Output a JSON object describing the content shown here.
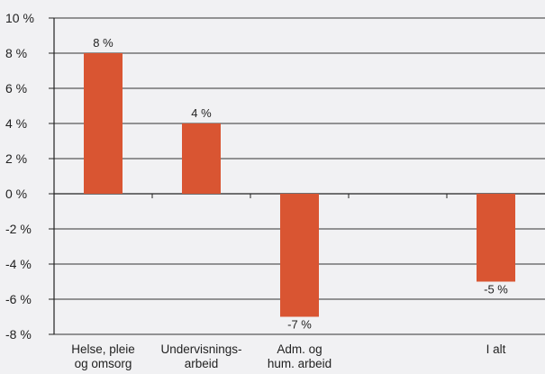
{
  "chart_data": {
    "type": "bar",
    "title": "",
    "xlabel": "",
    "ylabel": "",
    "ylim": [
      -8,
      10
    ],
    "yticks": [
      {
        "value": 10,
        "label": "10 %"
      },
      {
        "value": 8,
        "label": "8 %"
      },
      {
        "value": 6,
        "label": "6 %"
      },
      {
        "value": 4,
        "label": "4 %"
      },
      {
        "value": 2,
        "label": "2 %"
      },
      {
        "value": 0,
        "label": "0 %"
      },
      {
        "value": -2,
        "label": "-2 %"
      },
      {
        "value": -4,
        "label": "-4 %"
      },
      {
        "value": -6,
        "label": "-6 %"
      },
      {
        "value": -8,
        "label": "-8 %"
      }
    ],
    "grid": true,
    "legend": "none",
    "categories": [
      [
        "Helse, pleie",
        "og omsorg"
      ],
      [
        "Undervisnings-",
        "arbeid"
      ],
      [
        "Adm. og",
        "hum. arbeid"
      ],
      [
        ""
      ],
      [
        "I alt"
      ]
    ],
    "values": [
      8,
      4,
      -7,
      null,
      -5
    ],
    "data_labels": [
      "8 %",
      "4 %",
      "-7 %",
      "",
      "-5 %"
    ],
    "colors": {
      "bar": "#d95532",
      "grid": "#333333",
      "background": "#f1f1f3"
    }
  }
}
